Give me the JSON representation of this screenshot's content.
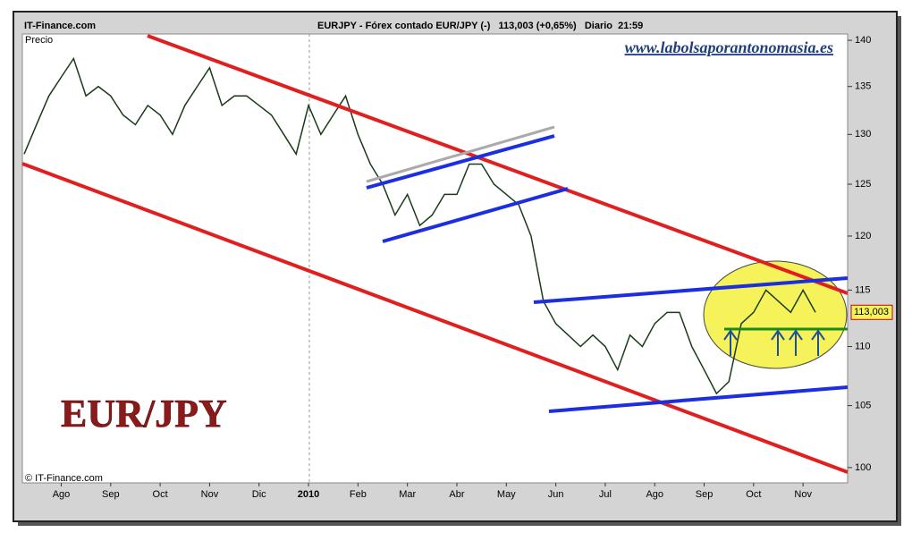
{
  "chart_data": {
    "type": "line",
    "site": "IT-Finance.com",
    "title": "EURJPY - Fórex contado EUR/JPY (-)   113,003 (+0,65%)   Diario  21:59",
    "watermark": "www.labolsaporantonomasia.es",
    "y_label": "Precio",
    "copyright": "© IT-Finance.com",
    "symbol": "EUR/JPY",
    "log_scale": true,
    "ylim": [
      98.8,
      140.7
    ],
    "yticks": [
      100,
      105,
      110,
      115,
      120,
      125,
      130,
      135,
      140
    ],
    "categories": [
      null,
      null,
      null,
      "Ago",
      null,
      null,
      null,
      "Sep",
      null,
      null,
      null,
      "Oct",
      null,
      null,
      null,
      "Nov",
      null,
      null,
      null,
      "Dic",
      null,
      null,
      null,
      "2010",
      null,
      null,
      null,
      "Feb",
      null,
      null,
      null,
      "Mar",
      null,
      null,
      null,
      "Abr",
      null,
      null,
      null,
      "May",
      null,
      null,
      null,
      "Jun",
      null,
      null,
      null,
      "Jul",
      null,
      null,
      null,
      "Ago",
      null,
      null,
      null,
      "Sep",
      null,
      null,
      null,
      "Oct",
      null,
      null,
      null,
      "Nov",
      null
    ],
    "series": [
      {
        "name": "EURJPY",
        "color": "#1a3a1a",
        "values": [
          128,
          131,
          134,
          136,
          138,
          134,
          135,
          134,
          132,
          131,
          133,
          132,
          130,
          133,
          135,
          137,
          133,
          134,
          134,
          133,
          132,
          130,
          128,
          133,
          130,
          132,
          134,
          130,
          127,
          125,
          122,
          124,
          121,
          122,
          124,
          124,
          127,
          127,
          125,
          124,
          123,
          120,
          114,
          112,
          111,
          110,
          111,
          110,
          108,
          111,
          110,
          112,
          113,
          113,
          110,
          108,
          106,
          107,
          112,
          113,
          115,
          114,
          113,
          115,
          113.003
        ]
      }
    ],
    "last_label": {
      "value": 113.003,
      "label": "113,003"
    }
  }
}
